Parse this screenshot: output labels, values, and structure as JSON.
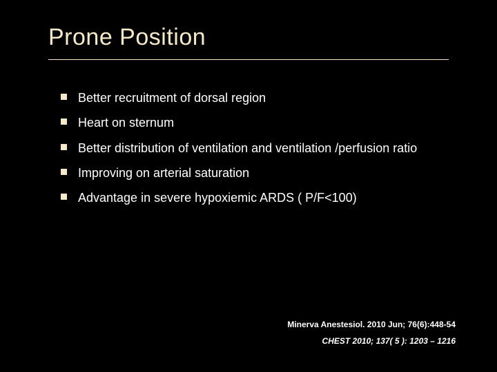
{
  "slide": {
    "title": "Prone Position",
    "title_color": "#f5e9c8",
    "background_color": "#000000",
    "bullet_marker_color": "#f5e9c8",
    "bullet_text_color": "#ffffff",
    "bullets": [
      "Better recruitment of dorsal region",
      "Heart on sternum",
      "Better distribution of ventilation and ventilation /perfusion ratio",
      "Improving on arterial saturation",
      "Advantage in severe hypoxiemic ARDS ( P/F<100)"
    ],
    "citations": [
      {
        "text": "Minerva Anestesiol. 2010 Jun; 76(6):448-54",
        "italic": false
      },
      {
        "text": "CHEST 2010; 137( 5 ): 1203 – 1216",
        "italic": true
      }
    ],
    "title_fontsize": 34,
    "bullet_fontsize": 18,
    "citation_fontsize": 12
  }
}
